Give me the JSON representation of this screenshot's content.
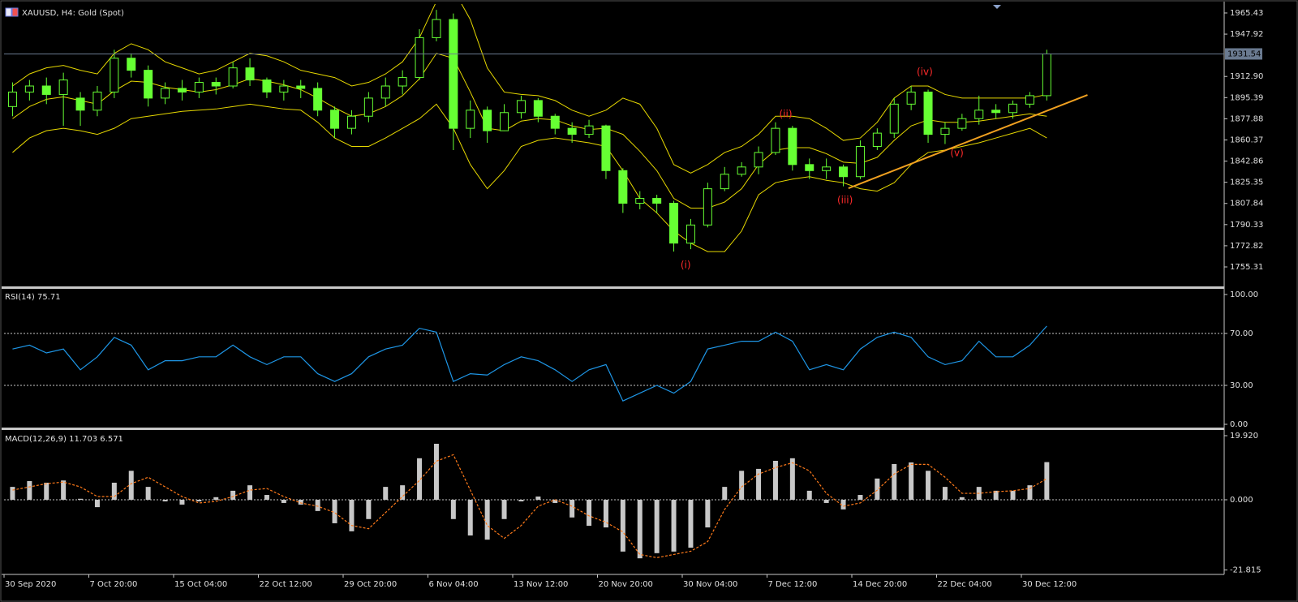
{
  "chart_data": [
    {
      "type": "candlestick",
      "title": "XAUUSD, H4:  Gold (Spot)",
      "color": "#66ff33",
      "ylim": [
        1739.2,
        1972.8
      ],
      "yticks": [
        1965.43,
        1947.92,
        {
          "value": 1912.9,
          "label": "1912.90"
        },
        1895.39,
        1877.88,
        1860.37,
        1842.86,
        1825.35,
        1807.84,
        1790.33,
        1772.82,
        1755.31
      ],
      "open": [
        1888,
        1900,
        1905,
        1898,
        1895,
        1885,
        1900,
        1928,
        1918,
        1895,
        1903,
        1900,
        1908,
        1905,
        1920,
        1910,
        1900,
        1905,
        1903,
        1885,
        1870,
        1880,
        1895,
        1905,
        1912,
        1945,
        1960,
        1870,
        1885,
        1868,
        1883,
        1893,
        1880,
        1870,
        1865,
        1872,
        1835,
        1808,
        1812,
        1808,
        1775,
        1790,
        1820,
        1832,
        1838,
        1850,
        1870,
        1840,
        1835,
        1838,
        1830,
        1855,
        1866,
        1890,
        1900,
        1865,
        1870,
        1878,
        1885,
        1883,
        1890,
        1897
      ],
      "high": [
        1908,
        1910,
        1912,
        1916,
        1900,
        1905,
        1935,
        1932,
        1922,
        1908,
        1910,
        1912,
        1912,
        1925,
        1928,
        1912,
        1910,
        1910,
        1908,
        1888,
        1885,
        1900,
        1912,
        1918,
        1952,
        1968,
        1965,
        1893,
        1888,
        1890,
        1897,
        1895,
        1882,
        1875,
        1877,
        1873,
        1837,
        1818,
        1815,
        1810,
        1795,
        1825,
        1838,
        1842,
        1855,
        1875,
        1872,
        1845,
        1845,
        1840,
        1860,
        1870,
        1895,
        1905,
        1902,
        1875,
        1882,
        1897,
        1890,
        1893,
        1900,
        1935
      ],
      "low": [
        1880,
        1893,
        1890,
        1872,
        1872,
        1880,
        1895,
        1912,
        1888,
        1890,
        1893,
        1895,
        1898,
        1903,
        1905,
        1895,
        1893,
        1895,
        1880,
        1862,
        1865,
        1875,
        1888,
        1898,
        1910,
        1942,
        1852,
        1862,
        1858,
        1868,
        1878,
        1875,
        1865,
        1858,
        1862,
        1828,
        1800,
        1803,
        1800,
        1768,
        1770,
        1788,
        1818,
        1830,
        1832,
        1848,
        1835,
        1828,
        1828,
        1822,
        1828,
        1852,
        1862,
        1885,
        1858,
        1857,
        1868,
        1873,
        1878,
        1878,
        1887,
        1893
      ],
      "close": [
        1900,
        1905,
        1898,
        1910,
        1885,
        1900,
        1928,
        1918,
        1895,
        1903,
        1900,
        1908,
        1905,
        1920,
        1910,
        1900,
        1905,
        1903,
        1885,
        1870,
        1880,
        1895,
        1905,
        1912,
        1945,
        1960,
        1870,
        1885,
        1868,
        1883,
        1893,
        1880,
        1870,
        1865,
        1872,
        1835,
        1808,
        1812,
        1808,
        1775,
        1790,
        1820,
        1832,
        1838,
        1850,
        1870,
        1840,
        1835,
        1838,
        1830,
        1855,
        1866,
        1890,
        1900,
        1865,
        1870,
        1878,
        1885,
        1883,
        1890,
        1897,
        1931.54
      ],
      "bands": {
        "color": "#e6d800",
        "upper": [
          1905,
          1915,
          1920,
          1922,
          1918,
          1915,
          1932,
          1940,
          1935,
          1925,
          1920,
          1915,
          1918,
          1925,
          1932,
          1930,
          1925,
          1918,
          1915,
          1912,
          1905,
          1908,
          1915,
          1925,
          1945,
          1975,
          1985,
          1960,
          1920,
          1900,
          1898,
          1897,
          1893,
          1885,
          1880,
          1885,
          1895,
          1890,
          1870,
          1840,
          1833,
          1840,
          1850,
          1855,
          1865,
          1880,
          1880,
          1878,
          1870,
          1860,
          1862,
          1875,
          1895,
          1905,
          1905,
          1898,
          1895,
          1895,
          1895,
          1895,
          1895,
          1898
        ],
        "middle": [
          1878,
          1888,
          1894,
          1896,
          1893,
          1890,
          1901,
          1909,
          1908,
          1904,
          1902,
          1900,
          1902,
          1906,
          1911,
          1909,
          1906,
          1902,
          1895,
          1887,
          1880,
          1882,
          1888,
          1897,
          1911,
          1932,
          1928,
          1900,
          1870,
          1868,
          1876,
          1878,
          1877,
          1872,
          1869,
          1870,
          1865,
          1851,
          1835,
          1812,
          1804,
          1804,
          1809,
          1820,
          1840,
          1852,
          1854,
          1854,
          1849,
          1842,
          1841,
          1846,
          1860,
          1872,
          1877,
          1875,
          1875,
          1876,
          1878,
          1880,
          1882,
          1880
        ],
        "lower": [
          1850,
          1862,
          1868,
          1870,
          1868,
          1865,
          1870,
          1878,
          1880,
          1882,
          1884,
          1885,
          1886,
          1888,
          1890,
          1888,
          1886,
          1885,
          1875,
          1862,
          1855,
          1855,
          1862,
          1870,
          1878,
          1890,
          1870,
          1840,
          1820,
          1835,
          1855,
          1860,
          1862,
          1860,
          1858,
          1855,
          1835,
          1812,
          1800,
          1785,
          1775,
          1768,
          1768,
          1785,
          1815,
          1825,
          1828,
          1830,
          1827,
          1825,
          1820,
          1818,
          1825,
          1840,
          1850,
          1852,
          1855,
          1858,
          1862,
          1866,
          1870,
          1862
        ]
      },
      "price_line": 1931.54,
      "trendline": {
        "x": [
          49.3,
          63.4
        ],
        "y": [
          1820.4,
          1897.6
        ],
        "color": "#f0a020"
      },
      "annotations": [
        {
          "text": "(i)",
          "x": 39.7,
          "y": 1756.6
        },
        {
          "text": "(ii)",
          "x": 45.6,
          "y": 1881.5
        },
        {
          "text": "(iii)",
          "x": 49.1,
          "y": 1810.3
        },
        {
          "text": "(iv)",
          "x": 53.8,
          "y": 1916.4
        },
        {
          "text": "(v)",
          "x": 55.7,
          "y": 1849.3
        }
      ],
      "annotation_color": "#ff2a2a"
    },
    {
      "type": "line",
      "title": "RSI(14) 75.71",
      "color": "#1e96e6",
      "ylim": [
        -2.5,
        103.75
      ],
      "yticks": [
        {
          "value": 100,
          "label": "100.00"
        },
        {
          "value": 70,
          "label": "70.00"
        },
        {
          "value": 30,
          "label": "30.00"
        },
        {
          "value": 0,
          "label": "0.00"
        }
      ],
      "levels": [
        70,
        30
      ],
      "values": [
        58,
        61,
        55,
        58,
        42,
        52,
        67,
        61,
        42,
        49,
        49,
        52,
        52,
        61,
        52,
        46,
        52,
        52,
        39,
        33,
        39,
        52,
        58,
        61,
        74,
        71,
        33,
        39,
        38,
        46,
        52,
        49,
        42,
        33,
        42,
        46,
        18,
        24,
        30,
        24,
        33,
        58,
        61,
        64,
        64,
        71,
        64,
        42,
        46,
        42,
        58,
        67,
        71,
        67,
        52,
        46,
        49,
        64,
        52,
        52,
        61,
        75.71
      ]
    },
    {
      "type": "bar",
      "title": "MACD(12,26,9) 11.703 6.571",
      "color": "#c8c8c8",
      "ylim": [
        -22.95,
        21.43
      ],
      "yticks": [
        {
          "value": 19.92,
          "label": "19.920"
        },
        {
          "value": 0,
          "label": "0.000"
        },
        -21.815
      ],
      "levels": [
        0
      ],
      "values": [
        4,
        5.8,
        5.3,
        6,
        0.3,
        -2.3,
        5.3,
        9,
        4,
        -0.5,
        -1.5,
        -0.5,
        0.8,
        2.8,
        4.5,
        1.5,
        -1,
        -1.5,
        -3.5,
        -7.3,
        -9.8,
        -6,
        4,
        4.5,
        12.9,
        17.4,
        -6,
        -11.1,
        -12.4,
        -6,
        -0.5,
        1,
        -1,
        -5.5,
        -8.1,
        -8.6,
        -16.1,
        -18.2,
        -16.6,
        -16.1,
        -14.9,
        -8.6,
        4,
        9,
        9.6,
        12.1,
        12.9,
        2.8,
        -1,
        -3,
        1.5,
        6.6,
        11.1,
        11.6,
        9,
        4,
        0.8,
        4,
        2.8,
        2.8,
        4.5,
        11.703
      ],
      "signal": {
        "color": "#ff7a1a",
        "values": [
          3,
          4,
          5,
          5.5,
          4,
          1,
          1,
          5,
          7,
          4,
          1,
          -1,
          -0.5,
          1,
          3,
          3.5,
          1,
          -1,
          -2,
          -4,
          -8,
          -9,
          -4,
          1,
          6,
          12,
          14,
          3,
          -8,
          -12,
          -8,
          -2,
          0,
          -2,
          -5,
          -7,
          -10,
          -17,
          -18,
          -17,
          -16,
          -13,
          -3,
          4,
          8,
          10,
          11.5,
          9,
          2,
          -2,
          -1,
          3,
          8,
          11,
          11,
          7,
          2,
          2,
          2.5,
          2.8,
          3.5,
          6.571
        ]
      },
      "categories": [
        "30 Sep 2020",
        null,
        null,
        null,
        null,
        "7 Oct 20:00",
        null,
        null,
        null,
        null,
        "15 Oct 04:00",
        null,
        null,
        null,
        null,
        "22 Oct 12:00",
        null,
        null,
        null,
        null,
        "29 Oct 20:00",
        null,
        null,
        null,
        null,
        "6 Nov 04:00",
        null,
        null,
        null,
        null,
        "13 Nov 12:00",
        null,
        null,
        null,
        null,
        "20 Nov 20:00",
        null,
        null,
        null,
        null,
        "30 Nov 04:00",
        null,
        null,
        null,
        null,
        "7 Dec 12:00",
        null,
        null,
        null,
        null,
        "14 Dec 20:00",
        null,
        null,
        null,
        null,
        "22 Dec 04:00",
        null,
        null,
        null,
        null,
        "30 Dec 12:00",
        null
      ]
    }
  ]
}
